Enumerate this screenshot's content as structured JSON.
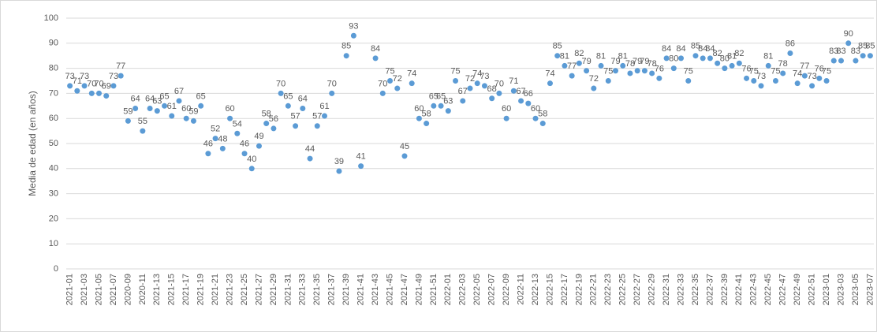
{
  "chart_data": {
    "type": "scatter",
    "y_label": "Media de edad (en años)",
    "categories": [
      "2021-01",
      null,
      "2021-03",
      null,
      "2021-05",
      null,
      "2021-07",
      null,
      "2020-09",
      null,
      "2020-11",
      null,
      "2021-13",
      null,
      "2021-15",
      null,
      "2021-17",
      null,
      "2021-19",
      null,
      "2021-21",
      null,
      "2021-23",
      null,
      "2021-25",
      null,
      "2021-27",
      null,
      "2021-29",
      null,
      "2021-31",
      null,
      "2021-33",
      null,
      "2021-35",
      null,
      "2021-37",
      null,
      "2021-39",
      null,
      "2021-41",
      null,
      "2021-43",
      null,
      "2021-45",
      null,
      "2021-47",
      null,
      "2021-49",
      null,
      "2021-51",
      null,
      "2022-01",
      null,
      "2022-03",
      null,
      "2022-05",
      null,
      "2022-07",
      null,
      "2022-09",
      null,
      "2022-11",
      null,
      "2022-13",
      null,
      "2022-15",
      null,
      "2022-17",
      null,
      "2022-19",
      null,
      "2022-21",
      null,
      "2022-23",
      null,
      "2022-25",
      null,
      "2022-27",
      null,
      "2022-29",
      null,
      "2022-31",
      null,
      "2022-33",
      null,
      "2022-35",
      null,
      "2022-37",
      null,
      "2022-39",
      null,
      "2022-41",
      null,
      "2022-43",
      null,
      "2022-45",
      null,
      "2022-47",
      null,
      "2022-49",
      null,
      "2022-51",
      null,
      "2023-01",
      null,
      "2023-03",
      null,
      "2023-05",
      null,
      "2023-07"
    ],
    "values": [
      73,
      71,
      73,
      70,
      70,
      69,
      73,
      77,
      59,
      64,
      55,
      64,
      63,
      65,
      61,
      67,
      60,
      59,
      65,
      46,
      52,
      48,
      60,
      54,
      46,
      40,
      49,
      58,
      56,
      70,
      65,
      57,
      64,
      44,
      57,
      61,
      70,
      39,
      85,
      93,
      41,
      null,
      84,
      70,
      75,
      72,
      45,
      74,
      60,
      58,
      65,
      65,
      63,
      75,
      67,
      72,
      74,
      73,
      68,
      70,
      60,
      71,
      67,
      66,
      60,
      58,
      74,
      85,
      81,
      77,
      82,
      79,
      72,
      81,
      75,
      79,
      81,
      78,
      79,
      79,
      78,
      76,
      84,
      80,
      84,
      75,
      85,
      84,
      84,
      82,
      80,
      81,
      82,
      76,
      75,
      73,
      81,
      75,
      78,
      86,
      74,
      77,
      73,
      76,
      75,
      83,
      83,
      90,
      83,
      85,
      85
    ],
    "color": "#5b9bd5",
    "ylim": [
      0,
      100
    ],
    "yticks": [
      0,
      10,
      20,
      30,
      40,
      50,
      60,
      70,
      80,
      90,
      100
    ],
    "grid": true,
    "data_labels": true
  }
}
